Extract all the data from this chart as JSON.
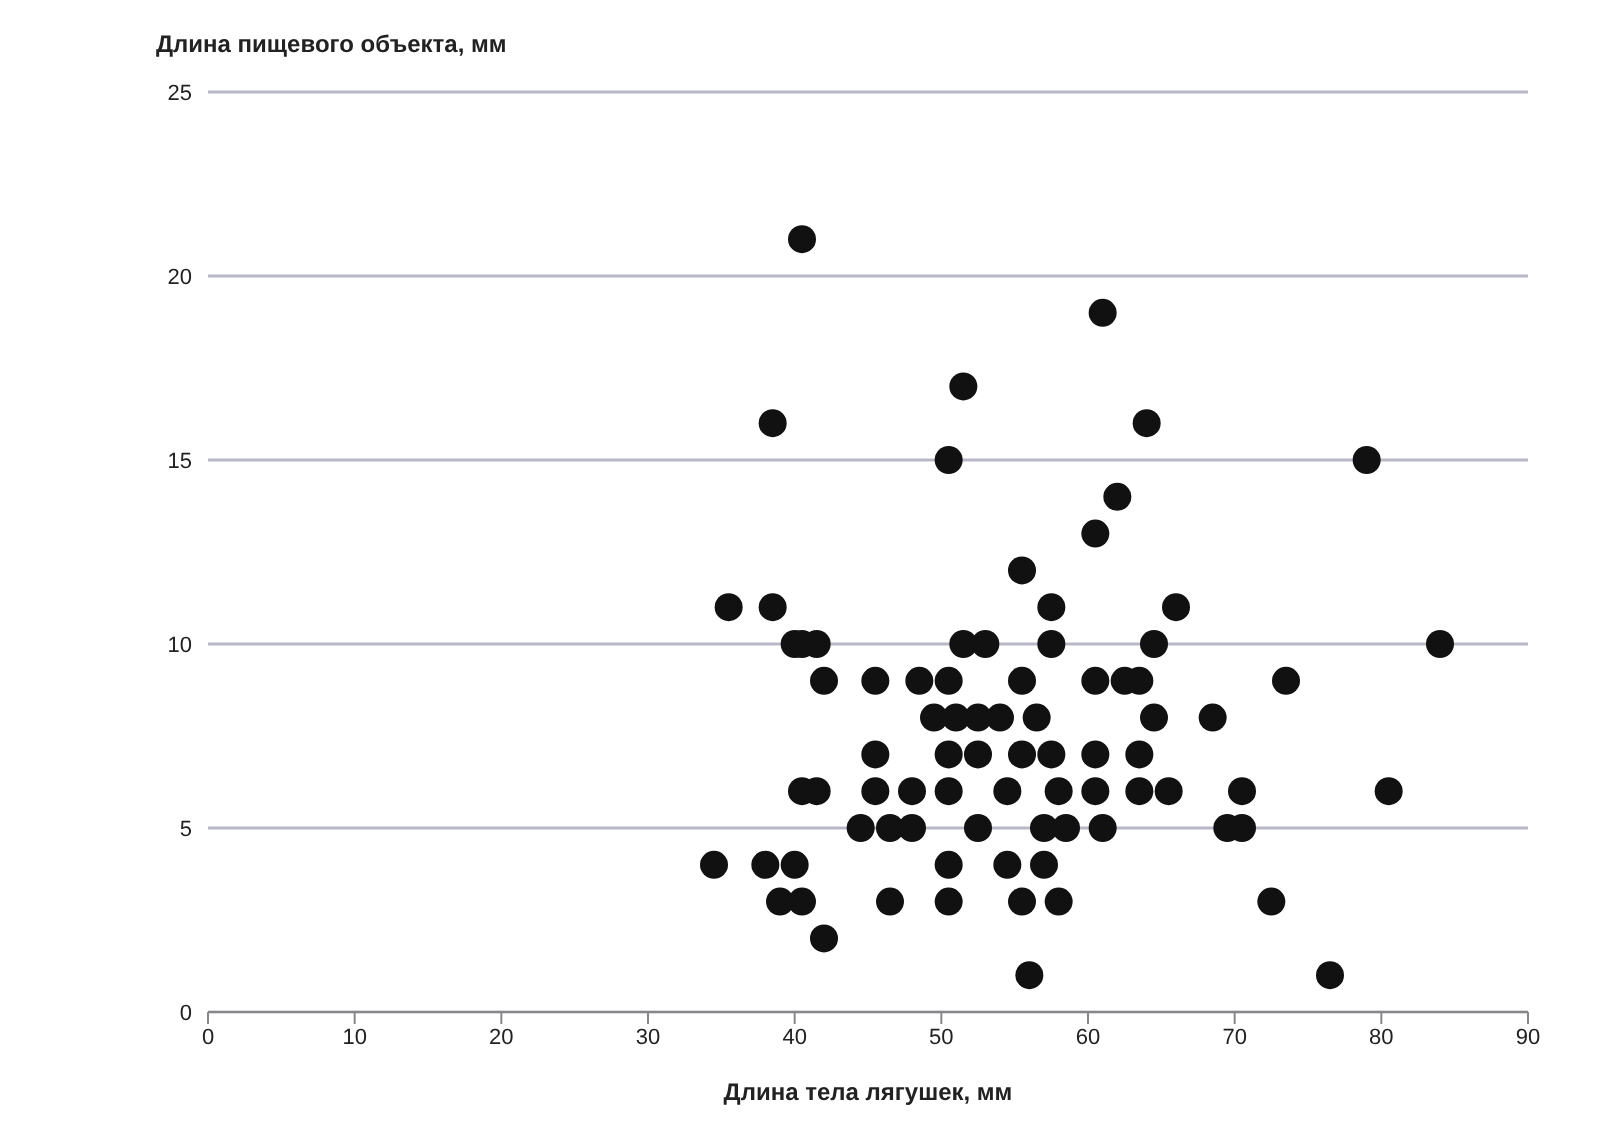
{
  "chart_data": {
    "type": "scatter",
    "xlabel": "Длина тела лягушек, мм",
    "ylabel": "Длина пищевого объекта, мм",
    "x": [
      40.5,
      61,
      51.5,
      38.5,
      64,
      50.5,
      79,
      62,
      60.5,
      55.5,
      35.5,
      38.5,
      57.5,
      66,
      40,
      40.5,
      41.5,
      51.5,
      53,
      57.5,
      64.5,
      84,
      42,
      45.5,
      48.5,
      50.5,
      55.5,
      60.5,
      62.5,
      63.5,
      73.5,
      49.5,
      51,
      52.5,
      54,
      56.5,
      64.5,
      68.5,
      45.5,
      50.5,
      52.5,
      55.5,
      57.5,
      60.5,
      63.5,
      40.5,
      41.5,
      45.5,
      48,
      50.5,
      54.5,
      58,
      60.5,
      63.5,
      65.5,
      70.5,
      80.5,
      44.5,
      46.5,
      48,
      52.5,
      57,
      58.5,
      61,
      69.5,
      70.5,
      34.5,
      38,
      40,
      50.5,
      54.5,
      57,
      39,
      40.5,
      46.5,
      50.5,
      55.5,
      58,
      72.5,
      42,
      56,
      76.5
    ],
    "values": [
      21,
      19,
      17,
      16,
      16,
      15,
      15,
      14,
      13,
      12,
      11,
      11,
      11,
      11,
      10,
      10,
      10,
      10,
      10,
      10,
      10,
      10,
      9,
      9,
      9,
      9,
      9,
      9,
      9,
      9,
      9,
      8,
      8,
      8,
      8,
      8,
      8,
      8,
      7,
      7,
      7,
      7,
      7,
      7,
      7,
      6,
      6,
      6,
      6,
      6,
      6,
      6,
      6,
      6,
      6,
      6,
      6,
      5,
      5,
      5,
      5,
      5,
      5,
      5,
      5,
      5,
      4,
      4,
      4,
      4,
      4,
      4,
      3,
      3,
      3,
      3,
      3,
      3,
      3,
      2,
      1,
      1
    ],
    "color": "#111111",
    "marker": "circle",
    "xlim": [
      0,
      90
    ],
    "xticks": [
      0,
      10,
      20,
      30,
      40,
      50,
      60,
      70,
      80,
      90
    ],
    "ylim": [
      0,
      25
    ],
    "yticks": [
      0,
      5,
      10,
      15,
      20,
      25
    ],
    "grid": "y"
  }
}
